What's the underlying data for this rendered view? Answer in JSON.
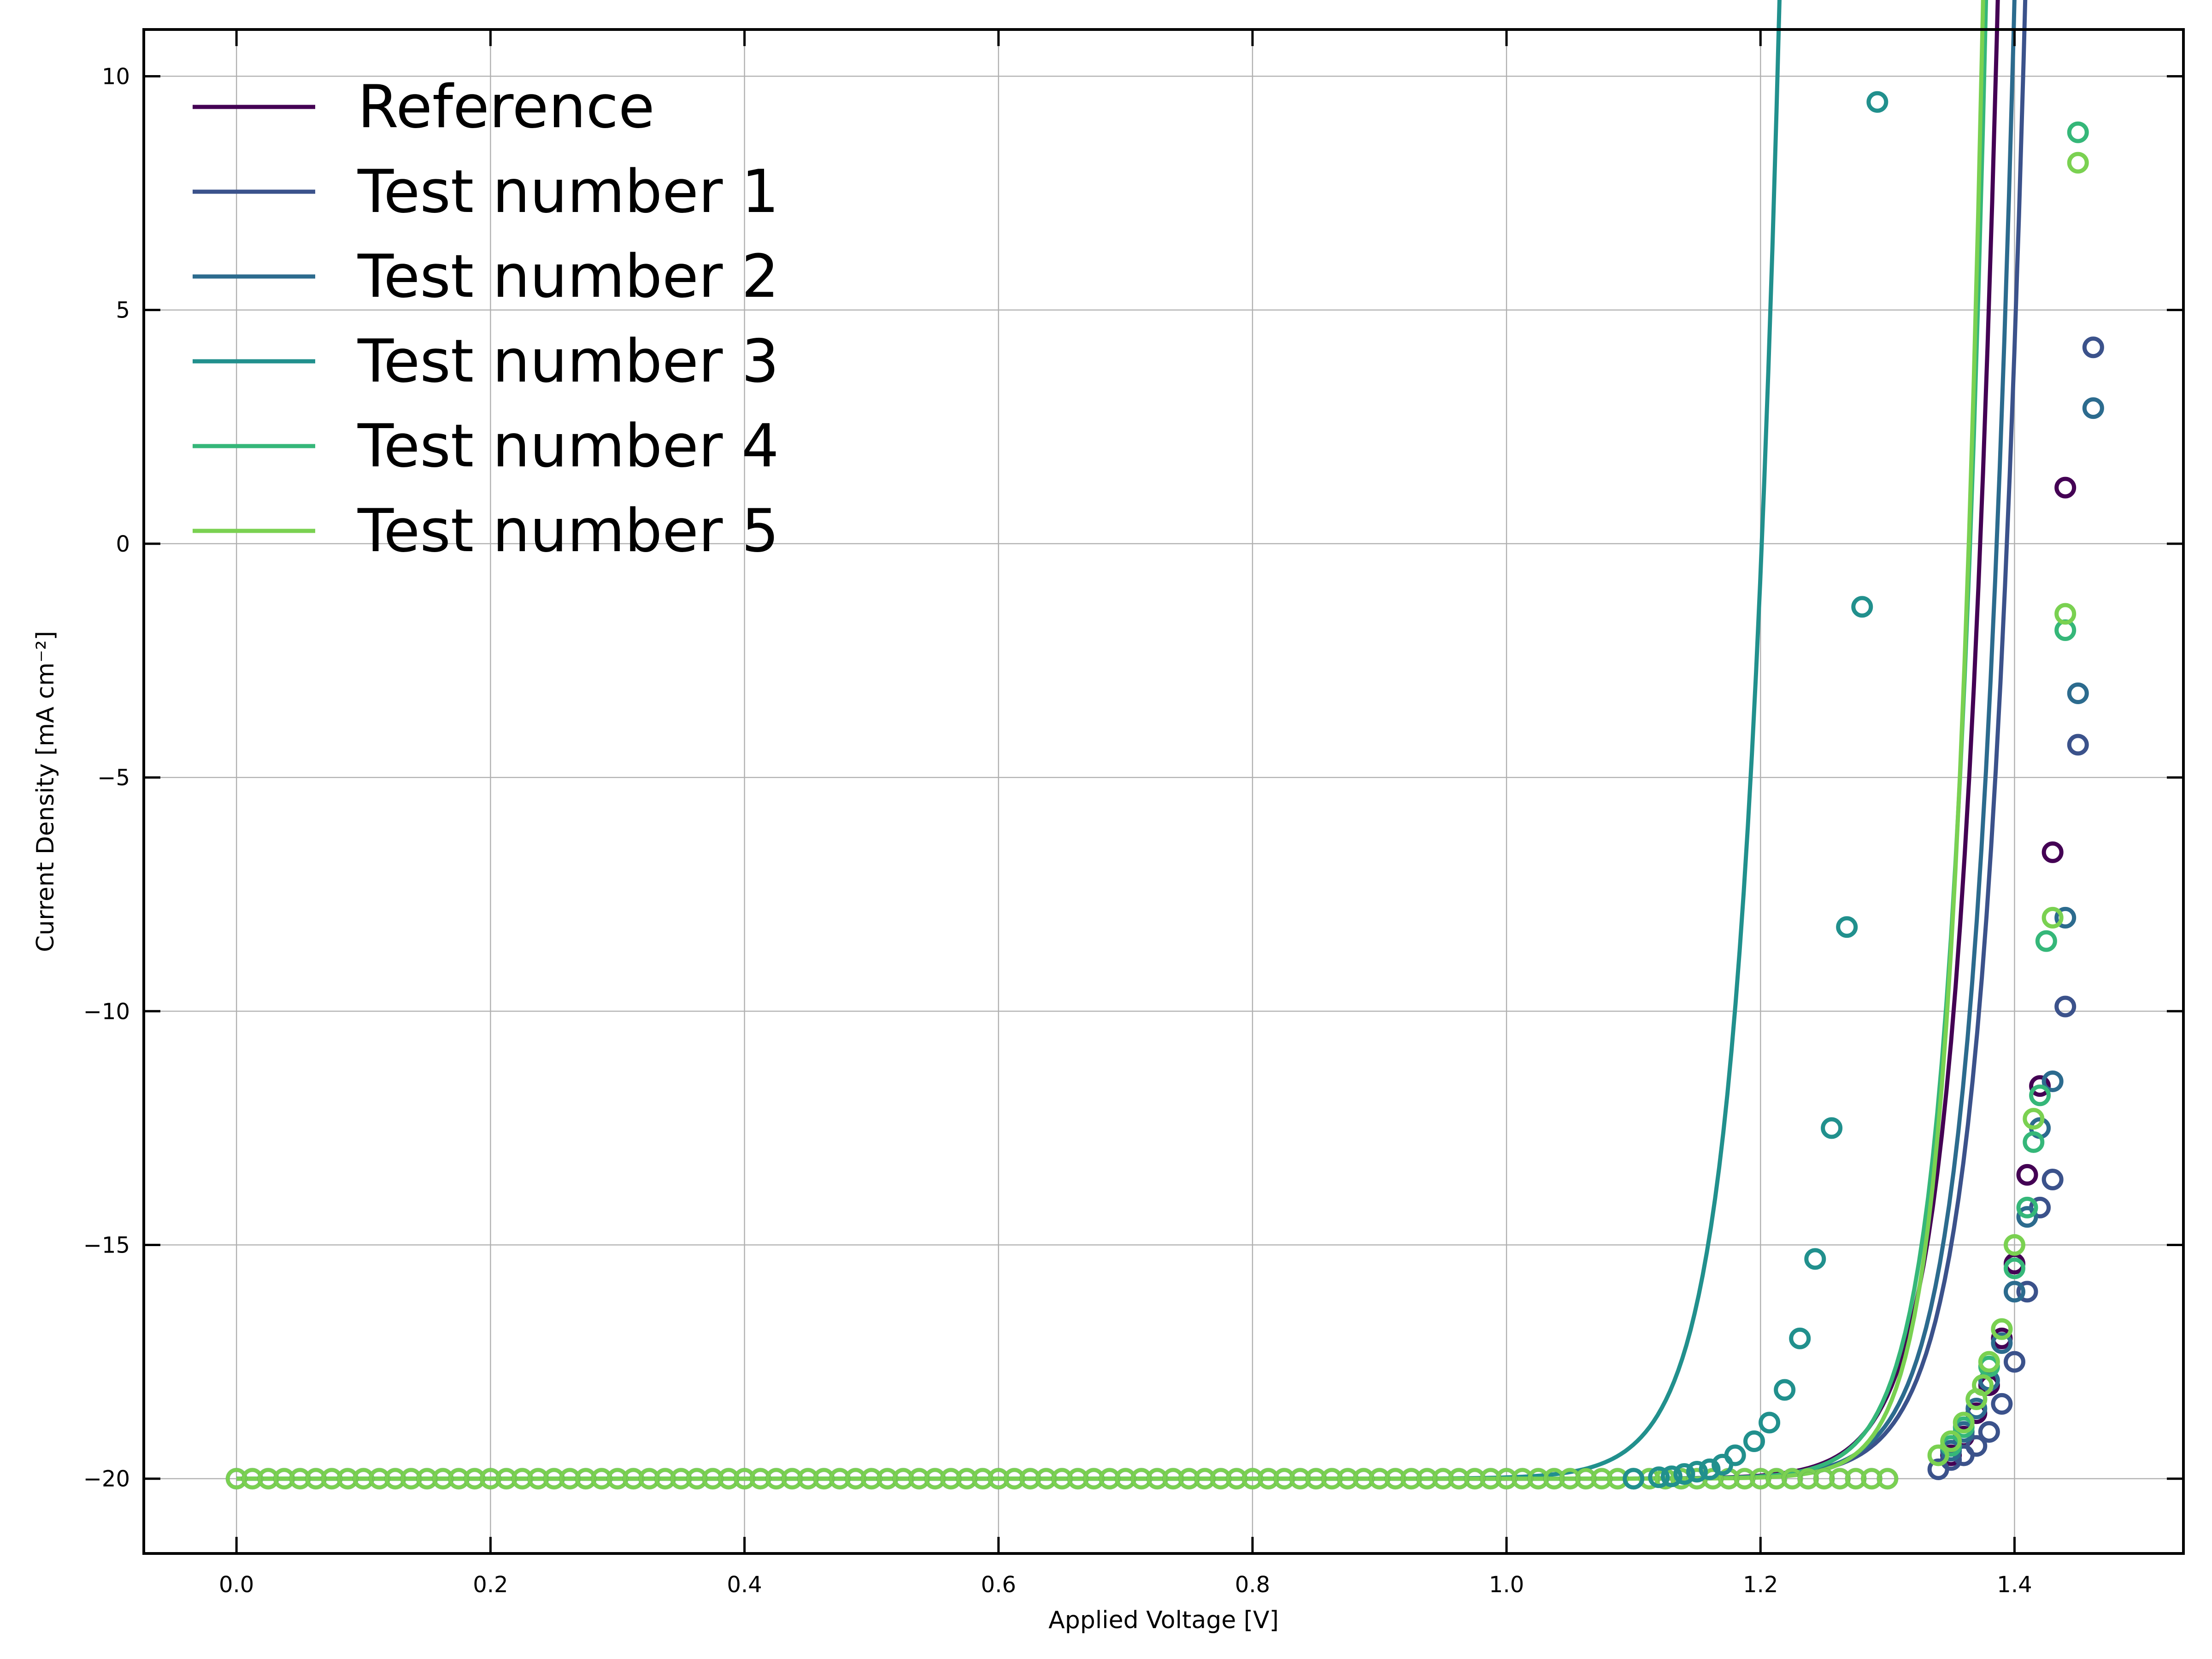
{
  "chart_data": {
    "type": "scatter",
    "title": "",
    "xlabel": "Applied Voltage [V]",
    "ylabel": "Current Density [mA cm⁻²]",
    "xlim": [
      -0.073,
      1.533
    ],
    "ylim": [
      -21.6,
      11.0
    ],
    "xticks": [
      0.0,
      0.2,
      0.4,
      0.6,
      0.8,
      1.0,
      1.2,
      1.4
    ],
    "xtick_labels": [
      "0.0",
      "0.2",
      "0.4",
      "0.6",
      "0.8",
      "1.0",
      "1.2",
      "1.4"
    ],
    "yticks": [
      10,
      5,
      0,
      -5,
      -10,
      -15,
      -20
    ],
    "ytick_labels": [
      "10",
      "5",
      "0",
      "−5",
      "−10",
      "−15",
      "−20"
    ],
    "grid": true,
    "legend_position": "top-left",
    "series": [
      {
        "name": "Reference",
        "color": "#440154",
        "line": {
          "jsc": -20.0,
          "a": 0.0302,
          "v0": 1.373,
          "vmax": 1.44
        },
        "points": [
          [
            1.35,
            -19.5
          ],
          [
            1.36,
            -19.1
          ],
          [
            1.37,
            -18.6
          ],
          [
            1.38,
            -18.0
          ],
          [
            1.39,
            -17.0
          ],
          [
            1.4,
            -15.4
          ],
          [
            1.41,
            -13.5
          ],
          [
            1.42,
            -11.6
          ],
          [
            1.43,
            -6.6
          ],
          [
            1.44,
            1.2
          ]
        ]
      },
      {
        "name": "Test number 1",
        "color": "#3b528b",
        "line": {
          "jsc": -20.0,
          "a": 0.0316,
          "v0": 1.394,
          "vmax": 1.462
        },
        "points": [
          [
            1.34,
            -19.8
          ],
          [
            1.35,
            -19.6
          ],
          [
            1.36,
            -19.5
          ],
          [
            1.37,
            -19.3
          ],
          [
            1.38,
            -19.0
          ],
          [
            1.39,
            -18.4
          ],
          [
            1.4,
            -17.5
          ],
          [
            1.41,
            -16.0
          ],
          [
            1.42,
            -14.2
          ],
          [
            1.43,
            -13.6
          ],
          [
            1.44,
            -9.9
          ],
          [
            1.45,
            -4.3
          ],
          [
            1.462,
            4.2
          ]
        ]
      },
      {
        "name": "Test number 2",
        "color": "#2c6b8e",
        "line": {
          "jsc": -20.0,
          "a": 0.0305,
          "v0": 1.386,
          "vmax": 1.45
        },
        "points": [
          [
            1.35,
            -19.4
          ],
          [
            1.36,
            -19.0
          ],
          [
            1.37,
            -18.5
          ],
          [
            1.38,
            -17.9
          ],
          [
            1.39,
            -17.1
          ],
          [
            1.4,
            -16.0
          ],
          [
            1.41,
            -14.4
          ],
          [
            1.42,
            -12.5
          ],
          [
            1.43,
            -11.5
          ],
          [
            1.44,
            -8.0
          ],
          [
            1.45,
            -3.2
          ],
          [
            1.462,
            2.9
          ]
        ]
      },
      {
        "name": "Test number 3",
        "color": "#21908d",
        "line": {
          "jsc": -20.0,
          "a": 0.0305,
          "v0": 1.201,
          "vmax": 1.29
        },
        "points": [
          [
            1.1,
            -20.0
          ],
          [
            1.12,
            -19.97
          ],
          [
            1.13,
            -19.95
          ],
          [
            1.14,
            -19.9
          ],
          [
            1.15,
            -19.85
          ],
          [
            1.16,
            -19.8
          ],
          [
            1.17,
            -19.7
          ],
          [
            1.18,
            -19.5
          ],
          [
            1.195,
            -19.2
          ],
          [
            1.207,
            -18.8
          ],
          [
            1.219,
            -18.1
          ],
          [
            1.231,
            -17.0
          ],
          [
            1.243,
            -15.3
          ],
          [
            1.256,
            -12.5
          ],
          [
            1.268,
            -8.2
          ],
          [
            1.28,
            -1.35
          ],
          [
            1.292,
            9.45
          ]
        ]
      },
      {
        "name": "Test number 4",
        "color": "#35b779",
        "line": {
          "jsc": -20.0,
          "a": 0.0275,
          "v0": 1.365,
          "vmax": 1.44
        },
        "points": [
          [
            1.35,
            -19.3
          ],
          [
            1.36,
            -18.9
          ],
          [
            1.37,
            -18.3
          ],
          [
            1.38,
            -17.6
          ],
          [
            1.39,
            -16.8
          ],
          [
            1.4,
            -15.5
          ],
          [
            1.41,
            -14.2
          ],
          [
            1.415,
            -12.8
          ],
          [
            1.42,
            -11.8
          ],
          [
            1.425,
            -8.5
          ],
          [
            1.44,
            -1.85
          ],
          [
            1.45,
            8.8
          ]
        ]
      },
      {
        "name": "Test number 5",
        "color": "#7ad151",
        "line": {
          "jsc": -20.0,
          "a": 0.0245,
          "v0": 1.364,
          "vmax": 1.436
        },
        "points": [
          [
            1.34,
            -19.5
          ],
          [
            1.35,
            -19.2
          ],
          [
            1.36,
            -18.8
          ],
          [
            1.37,
            -18.3
          ],
          [
            1.375,
            -18.0
          ],
          [
            1.38,
            -17.5
          ],
          [
            1.39,
            -16.8
          ],
          [
            1.4,
            -15.0
          ],
          [
            1.415,
            -12.3
          ],
          [
            1.43,
            -8.0
          ],
          [
            1.44,
            -1.5
          ],
          [
            1.45,
            8.15
          ]
        ]
      }
    ],
    "baseline_markers": {
      "y": -20.0,
      "x_start": 0.0,
      "x_end": 1.3,
      "step": 0.0125,
      "color": "#7ad151",
      "edge_color": "#3b6f57"
    }
  }
}
